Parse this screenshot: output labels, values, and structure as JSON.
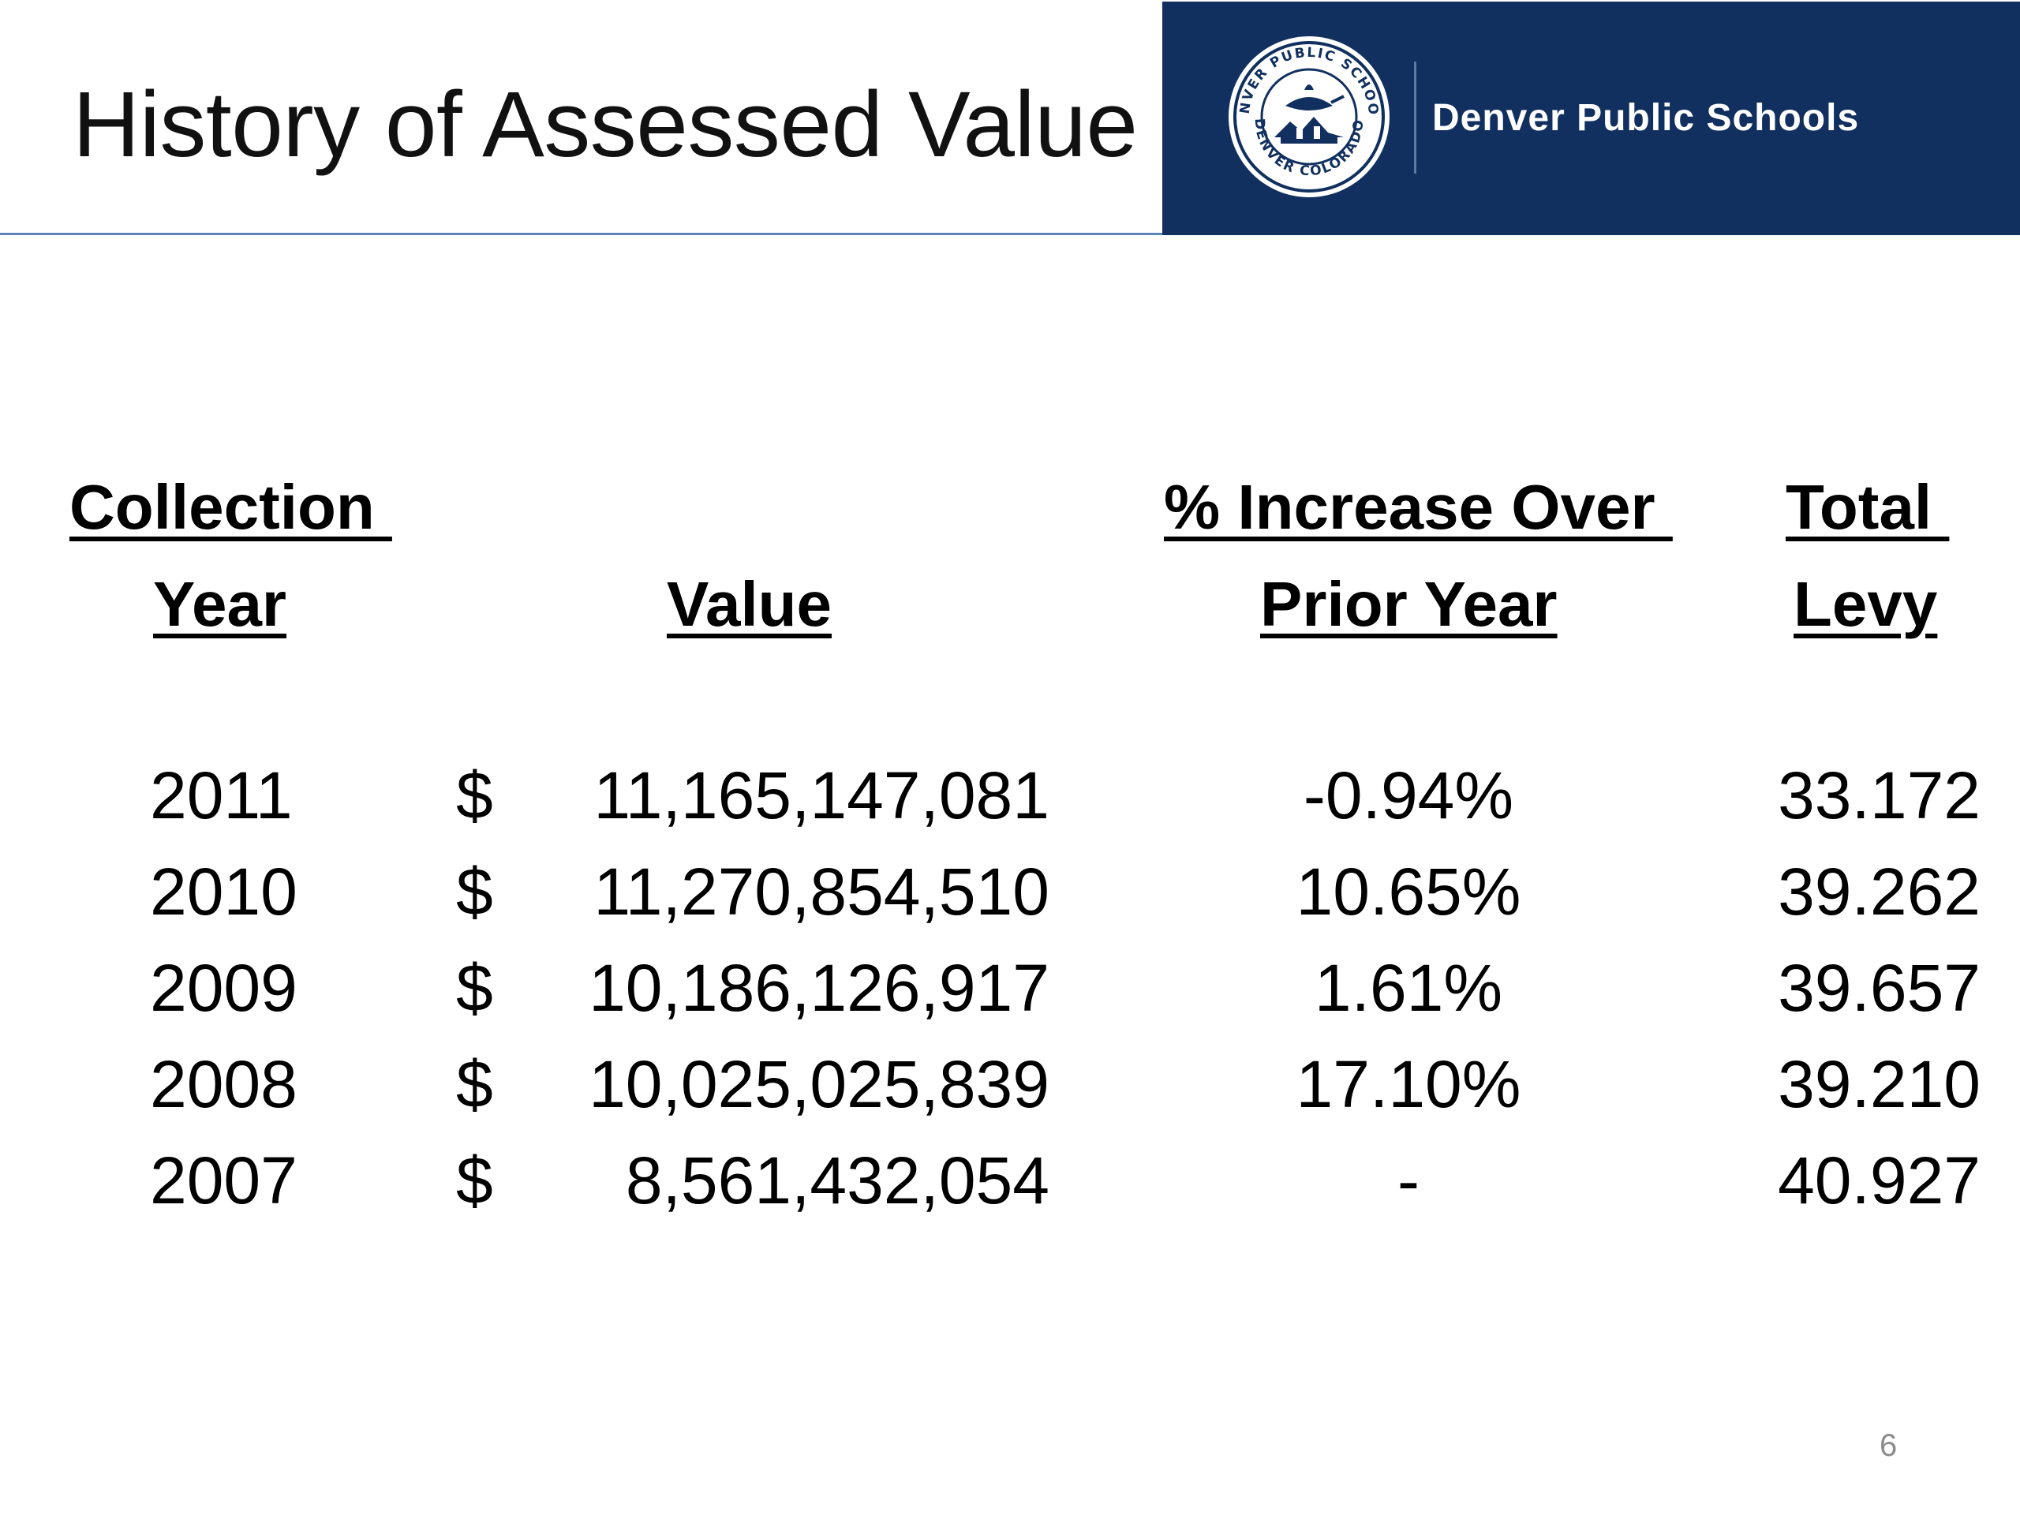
{
  "slide": {
    "title": "History of Assessed Value",
    "page_number": "6"
  },
  "branding": {
    "name": "Denver Public Schools",
    "seal_text_top": "DENVER PUBLIC SCHOOLS",
    "seal_text_bottom": "DENVER COLORADO",
    "panel_color": "#11305f"
  },
  "table": {
    "headers": {
      "collection_line1": "Collection ",
      "collection_line2": "Year",
      "value": "Value",
      "pct_line1": "% Increase Over ",
      "pct_line2": "Prior Year",
      "levy_line1": "Total ",
      "levy_line2": "Levy"
    },
    "rows": [
      {
        "year": "2011",
        "currency": "$",
        "value": "11,165,147,081",
        "pct": "-0.94%",
        "levy": "33.172"
      },
      {
        "year": "2010",
        "currency": "$",
        "value": "11,270,854,510",
        "pct": "10.65%",
        "levy": "39.262"
      },
      {
        "year": "2009",
        "currency": "$",
        "value": "10,186,126,917",
        "pct": "1.61%",
        "levy": "39.657"
      },
      {
        "year": "2008",
        "currency": "$",
        "value": "10,025,025,839",
        "pct": "17.10%",
        "levy": "39.210"
      },
      {
        "year": "2007",
        "currency": "$",
        "value": "8,561,432,054",
        "pct": "-",
        "levy": "40.927"
      }
    ]
  }
}
